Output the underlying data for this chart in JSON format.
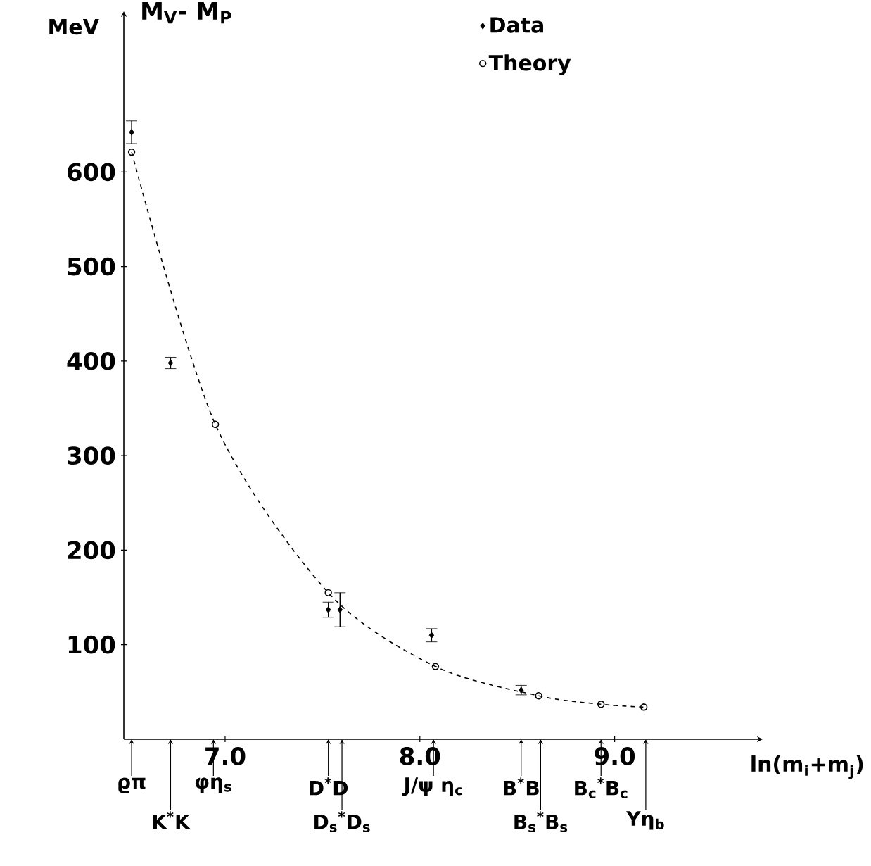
{
  "chart_data": {
    "type": "scatter",
    "title": "M$_{V}$- M$_{P}$",
    "ylabel": "MeV",
    "xlabel": "ln(m$_{i}$+m$_{j}$)",
    "xlim": [
      6.48,
      9.76
    ],
    "ylim": [
      0,
      770
    ],
    "xticks": [
      {
        "value": 7,
        "label": "7.0"
      },
      {
        "value": 8,
        "label": "8.0"
      },
      {
        "value": 9,
        "label": "9.0"
      }
    ],
    "yticks": [
      100,
      200,
      300,
      400,
      500,
      600
    ],
    "legend": "top right",
    "series": [
      {
        "name": "Data",
        "marker": "diamond",
        "color": "#000000",
        "x": [
          6.52,
          6.72,
          7.53,
          7.59,
          8.06,
          8.52
        ],
        "values": [
          642,
          398,
          137,
          137,
          110,
          52
        ],
        "errors": [
          12,
          6,
          8,
          18,
          7,
          5
        ]
      },
      {
        "name": "Theory",
        "type": "line",
        "marker": "circle",
        "line_style": "dashed",
        "color": "#000000",
        "x": [
          6.52,
          6.95,
          7.53,
          8.08,
          8.61,
          8.93,
          9.15
        ],
        "values": [
          621,
          333,
          155,
          77,
          46,
          37,
          34
        ]
      }
    ],
    "annotations": [
      {
        "text": "ϱπ",
        "x": 6.52,
        "y": 0
      },
      {
        "text": "K$^{*}$K",
        "x": 6.72,
        "y": 0
      },
      {
        "text": "φη$_{s}$",
        "x": 6.94,
        "y": 0
      },
      {
        "text": "D$^{*}$D",
        "x": 7.53,
        "y": 0
      },
      {
        "text": "D$_{s}$$^{*}$D$_{s}$",
        "x": 7.6,
        "y": 0
      },
      {
        "text": "J/ψ η$_{c}$",
        "x": 8.07,
        "y": 0
      },
      {
        "text": "B$^{*}$B",
        "x": 8.52,
        "y": 0
      },
      {
        "text": "B$_{s}$$^{*}$B$_{s}$",
        "x": 8.62,
        "y": 0
      },
      {
        "text": "B$_{c}$$^{*}$B$_{c}$",
        "x": 8.93,
        "y": 0
      },
      {
        "text": "Υη$_{b}$",
        "x": 9.16,
        "y": 0
      }
    ]
  }
}
